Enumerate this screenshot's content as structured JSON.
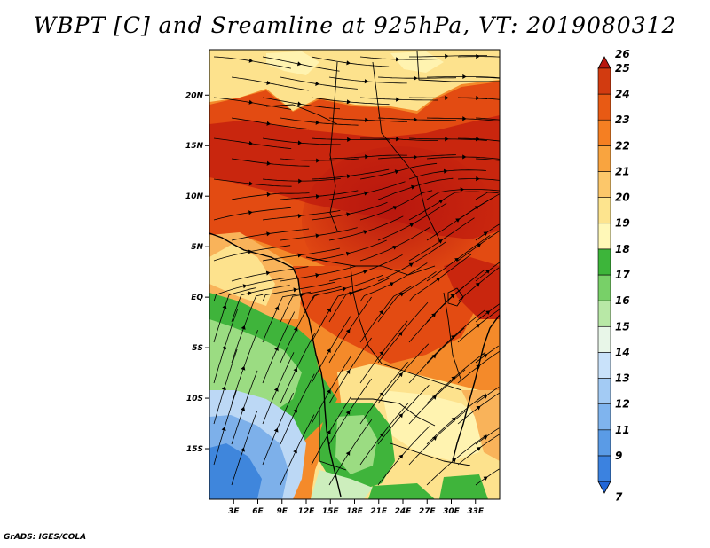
{
  "title": "WBPT [C] and Sreamline at 925hPa, VT: 2019080312",
  "footer": "GrADS: IGES/COLA",
  "map": {
    "lon_range": [
      0,
      36
    ],
    "lat_range": [
      -20,
      24.5
    ],
    "lat_ticks": [
      {
        "value": 20,
        "label": "20N"
      },
      {
        "value": 15,
        "label": "15N"
      },
      {
        "value": 10,
        "label": "10N"
      },
      {
        "value": 5,
        "label": "5N"
      },
      {
        "value": 0,
        "label": "EQ"
      },
      {
        "value": -5,
        "label": "5S"
      },
      {
        "value": -10,
        "label": "10S"
      },
      {
        "value": -15,
        "label": "15S"
      }
    ],
    "lon_ticks": [
      {
        "value": 3,
        "label": "3E"
      },
      {
        "value": 6,
        "label": "6E"
      },
      {
        "value": 9,
        "label": "9E"
      },
      {
        "value": 12,
        "label": "12E"
      },
      {
        "value": 15,
        "label": "15E"
      },
      {
        "value": 18,
        "label": "18E"
      },
      {
        "value": 21,
        "label": "21E"
      },
      {
        "value": 24,
        "label": "24E"
      },
      {
        "value": 27,
        "label": "27E"
      },
      {
        "value": 30,
        "label": "30E"
      },
      {
        "value": 33,
        "label": "33E"
      }
    ]
  },
  "colorbar": {
    "levels": [
      {
        "label": "7",
        "color": "#2166d8"
      },
      {
        "label": "9",
        "color": "#3b82e0"
      },
      {
        "label": "11",
        "color": "#5a9be6"
      },
      {
        "label": "12",
        "color": "#7fb4ee"
      },
      {
        "label": "13",
        "color": "#a3cbf4"
      },
      {
        "label": "14",
        "color": "#c9e2fa"
      },
      {
        "label": "15",
        "color": "#e8f6e8"
      },
      {
        "label": "16",
        "color": "#b8e8a6"
      },
      {
        "label": "17",
        "color": "#78d068"
      },
      {
        "label": "18",
        "color": "#3db53a"
      },
      {
        "label": "19",
        "color": "#fff8b8"
      },
      {
        "label": "20",
        "color": "#fde48e"
      },
      {
        "label": "21",
        "color": "#fcc76a"
      },
      {
        "label": "22",
        "color": "#f9a43f"
      },
      {
        "label": "23",
        "color": "#f57f22"
      },
      {
        "label": "24",
        "color": "#e85a14"
      },
      {
        "label": "25",
        "color": "#d23b10"
      },
      {
        "label": "26",
        "color": "#b8170e"
      }
    ]
  },
  "field_colors": {
    "hot": "#c9260e",
    "warm": "#e34b12",
    "orange": "#f48a2a",
    "light_orange": "#f9b35a",
    "pale": "#fde28d",
    "pale_yellow": "#fff3b0",
    "green": "#3fb43b",
    "light_green": "#9bdc82",
    "pale_green": "#cdeebd",
    "blue_light": "#bcd8f5",
    "blue": "#7db0ea",
    "blue_dark": "#3f86dc"
  }
}
